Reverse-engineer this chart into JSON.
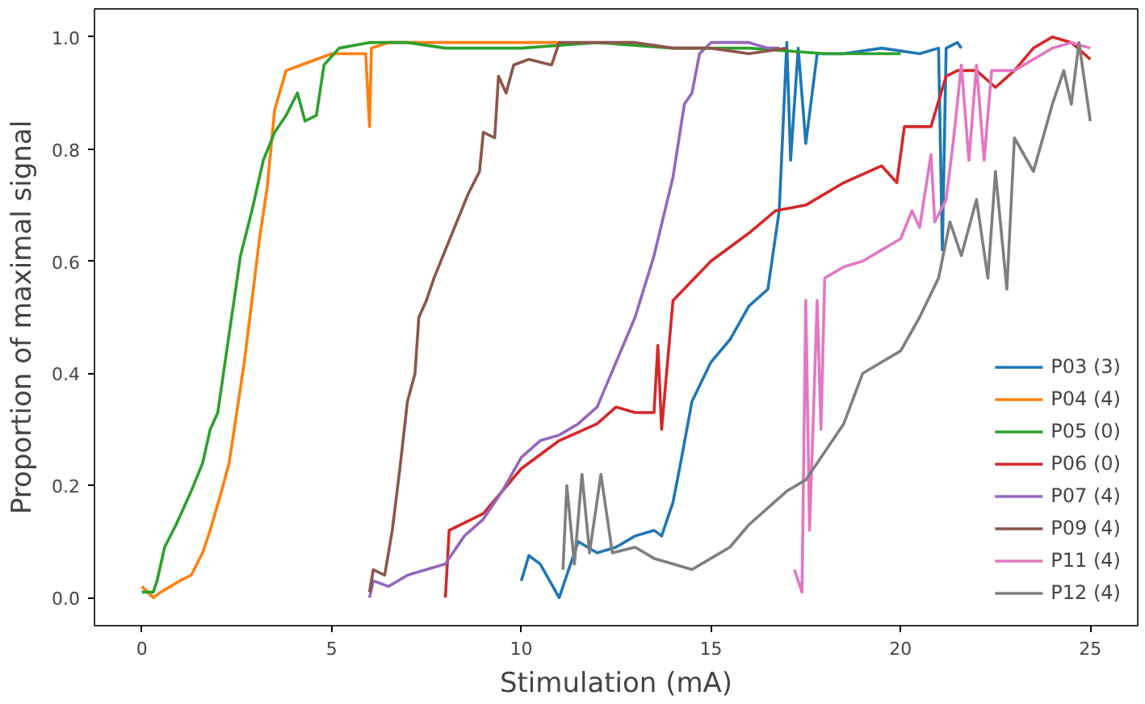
{
  "chart_data": {
    "type": "line",
    "xlabel": "Stimulation (mA)",
    "ylabel": "Proportion of maximal signal",
    "xlim": [
      -1.25,
      26.25
    ],
    "ylim": [
      -0.05,
      1.05
    ],
    "xticks": [
      0,
      5,
      10,
      15,
      20,
      25
    ],
    "yticks": [
      {
        "value": 0,
        "label": "0.0"
      },
      {
        "value": 0.2,
        "label": "0.2"
      },
      {
        "value": 0.4,
        "label": "0.4"
      },
      {
        "value": 0.6,
        "label": "0.6"
      },
      {
        "value": 0.8,
        "label": "0.8"
      },
      {
        "value": 1,
        "label": "1.0"
      }
    ],
    "grid": false,
    "legend": "bottom right",
    "line_style": "solid",
    "marker": "none",
    "series": [
      {
        "name": "P03 (3)",
        "color": "#1f77b4",
        "x": [
          10,
          10.2,
          10.5,
          11,
          11.5,
          12,
          12.5,
          13,
          13.5,
          13.7,
          14,
          14.2,
          14.5,
          15,
          15.5,
          16,
          16.5,
          16.8,
          17,
          17.1,
          17.3,
          17.5,
          17.8,
          18.5,
          19.5,
          20.5,
          21,
          21.1,
          21.2,
          21.5,
          21.6
        ],
        "values": [
          0.03,
          0.075,
          0.06,
          0.0,
          0.1,
          0.08,
          0.09,
          0.11,
          0.12,
          0.11,
          0.17,
          0.24,
          0.35,
          0.42,
          0.46,
          0.52,
          0.55,
          0.69,
          0.99,
          0.78,
          0.98,
          0.81,
          0.97,
          0.97,
          0.98,
          0.97,
          0.98,
          0.62,
          0.98,
          0.99,
          0.98
        ]
      },
      {
        "name": "P04 (4)",
        "color": "#ff7f0e",
        "x": [
          0,
          0.3,
          0.5,
          1.0,
          1.3,
          1.6,
          1.8,
          2.1,
          2.3,
          2.5,
          2.7,
          2.9,
          3.1,
          3.3,
          3.5,
          3.8,
          4.2,
          4.6,
          5.0,
          5.9,
          6.0,
          6.05,
          6.5,
          7.5,
          9,
          11
        ],
        "values": [
          0.02,
          0.0,
          0.01,
          0.03,
          0.04,
          0.08,
          0.12,
          0.19,
          0.24,
          0.33,
          0.42,
          0.53,
          0.64,
          0.73,
          0.87,
          0.94,
          0.95,
          0.96,
          0.97,
          0.97,
          0.84,
          0.98,
          0.99,
          0.99,
          0.99,
          0.99
        ]
      },
      {
        "name": "P05 (0)",
        "color": "#2ca02c",
        "x": [
          0,
          0.3,
          0.4,
          0.6,
          0.9,
          1.1,
          1.3,
          1.6,
          1.8,
          2.0,
          2.3,
          2.6,
          2.9,
          3.2,
          3.5,
          3.8,
          4.1,
          4.3,
          4.6,
          4.8,
          5.2,
          6,
          7,
          8,
          10,
          12,
          14,
          16,
          18,
          20
        ],
        "values": [
          0.01,
          0.01,
          0.03,
          0.09,
          0.13,
          0.16,
          0.19,
          0.24,
          0.3,
          0.33,
          0.47,
          0.61,
          0.69,
          0.78,
          0.83,
          0.86,
          0.9,
          0.85,
          0.86,
          0.95,
          0.98,
          0.99,
          0.99,
          0.98,
          0.98,
          0.99,
          0.98,
          0.98,
          0.97,
          0.97
        ]
      },
      {
        "name": "P06 (0)",
        "color": "#d62728",
        "x": [
          8,
          8.1,
          9,
          10,
          11,
          12,
          12.5,
          13,
          13.5,
          13.6,
          13.7,
          14,
          15,
          16,
          16.7,
          17.5,
          18.5,
          19.5,
          19.9,
          20.1,
          20.8,
          21.2,
          21.5,
          22,
          22.5,
          23,
          23.5,
          24,
          24.5,
          25
        ],
        "values": [
          0.0,
          0.12,
          0.15,
          0.23,
          0.28,
          0.31,
          0.34,
          0.33,
          0.33,
          0.45,
          0.3,
          0.53,
          0.6,
          0.65,
          0.69,
          0.7,
          0.74,
          0.77,
          0.74,
          0.84,
          0.84,
          0.93,
          0.94,
          0.94,
          0.91,
          0.94,
          0.98,
          1.0,
          0.99,
          0.96
        ]
      },
      {
        "name": "P07 (4)",
        "color": "#9467bd",
        "x": [
          6,
          6.1,
          6.5,
          7,
          7.5,
          8,
          8.5,
          9,
          9.5,
          10,
          10.5,
          11,
          11.5,
          12,
          12.5,
          13,
          13.5,
          14,
          14.3,
          14.5,
          14.7,
          15,
          15.5,
          16,
          16.5,
          16.8
        ],
        "values": [
          0.0,
          0.03,
          0.02,
          0.04,
          0.05,
          0.06,
          0.11,
          0.14,
          0.19,
          0.25,
          0.28,
          0.29,
          0.31,
          0.34,
          0.42,
          0.5,
          0.61,
          0.75,
          0.88,
          0.9,
          0.97,
          0.99,
          0.99,
          0.99,
          0.98,
          0.98
        ]
      },
      {
        "name": "P09 (4)",
        "color": "#8c564b",
        "x": [
          6,
          6.1,
          6.4,
          6.6,
          6.8,
          7.0,
          7.2,
          7.3,
          7.5,
          7.7,
          8.0,
          8.3,
          8.6,
          8.9,
          9.0,
          9.3,
          9.4,
          9.6,
          9.8,
          10.2,
          10.8,
          11,
          12,
          13,
          14,
          15,
          16,
          17
        ],
        "values": [
          0.01,
          0.05,
          0.04,
          0.12,
          0.23,
          0.35,
          0.4,
          0.5,
          0.53,
          0.57,
          0.62,
          0.67,
          0.72,
          0.76,
          0.83,
          0.82,
          0.93,
          0.9,
          0.95,
          0.96,
          0.95,
          0.99,
          0.99,
          0.99,
          0.98,
          0.98,
          0.97,
          0.98
        ]
      },
      {
        "name": "P11 (4)",
        "color": "#e377c2",
        "x": [
          17.2,
          17.4,
          17.5,
          17.6,
          17.8,
          17.9,
          18,
          18.5,
          19,
          19.5,
          20,
          20.3,
          20.5,
          20.8,
          20.9,
          21.2,
          21.4,
          21.6,
          21.8,
          22,
          22.2,
          22.4,
          23,
          23.5,
          24,
          24.5,
          25
        ],
        "values": [
          0.05,
          0.01,
          0.53,
          0.12,
          0.53,
          0.3,
          0.57,
          0.59,
          0.6,
          0.62,
          0.64,
          0.69,
          0.66,
          0.79,
          0.67,
          0.71,
          0.82,
          0.95,
          0.78,
          0.95,
          0.78,
          0.94,
          0.94,
          0.96,
          0.98,
          0.99,
          0.98
        ]
      },
      {
        "name": "P12 (4)",
        "color": "#7f7f7f",
        "x": [
          11.1,
          11.2,
          11.4,
          11.6,
          11.8,
          12.1,
          12.4,
          13,
          13.5,
          14,
          14.5,
          15,
          15.5,
          16,
          16.5,
          17,
          17.5,
          18,
          18.5,
          19,
          19.5,
          20,
          20.5,
          21,
          21.3,
          21.6,
          22,
          22.3,
          22.5,
          22.8,
          23,
          23.5,
          24,
          24.3,
          24.5,
          24.7,
          25
        ],
        "values": [
          0.05,
          0.2,
          0.06,
          0.22,
          0.08,
          0.22,
          0.08,
          0.09,
          0.07,
          0.06,
          0.05,
          0.07,
          0.09,
          0.13,
          0.16,
          0.19,
          0.21,
          0.26,
          0.31,
          0.4,
          0.42,
          0.44,
          0.5,
          0.57,
          0.67,
          0.61,
          0.71,
          0.57,
          0.76,
          0.55,
          0.82,
          0.76,
          0.88,
          0.94,
          0.88,
          0.99,
          0.85
        ]
      }
    ]
  }
}
